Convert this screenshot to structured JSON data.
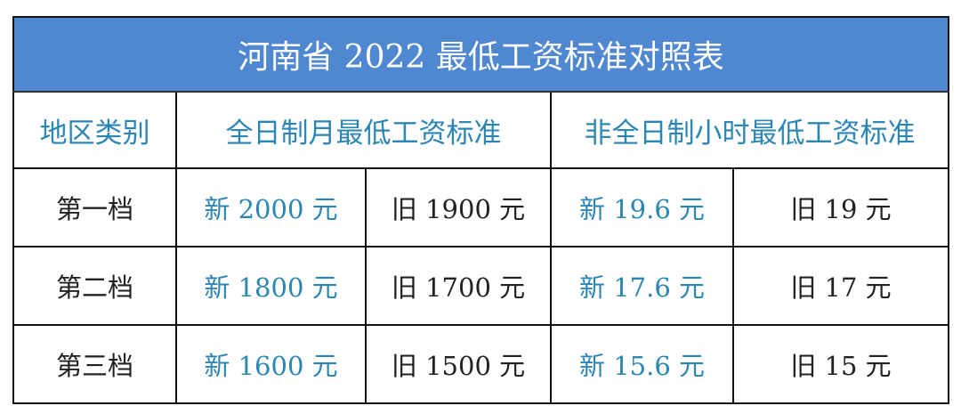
{
  "title": "河南省 2022 最低工资标准对照表",
  "headers": {
    "category": "地区类别",
    "monthly": "全日制月最低工资标准",
    "hourly": "非全日制小时最低工资标准"
  },
  "rows": [
    {
      "tier": "第一档",
      "monthly_new": "新  2000 元",
      "monthly_old": "旧  1900 元",
      "hourly_new": "新  19.6 元",
      "hourly_old": "旧  19 元"
    },
    {
      "tier": "第二档",
      "monthly_new": "新  1800 元",
      "monthly_old": "旧  1700 元",
      "hourly_new": "新  17.6 元",
      "hourly_old": "旧  17 元"
    },
    {
      "tier": "第三档",
      "monthly_new": "新  1600 元",
      "monthly_old": "旧  1500 元",
      "hourly_new": "新  15.6 元",
      "hourly_old": "旧  15 元"
    }
  ],
  "colors": {
    "header_bg": "#4f87d0",
    "accent_text": "#2b86b4"
  }
}
